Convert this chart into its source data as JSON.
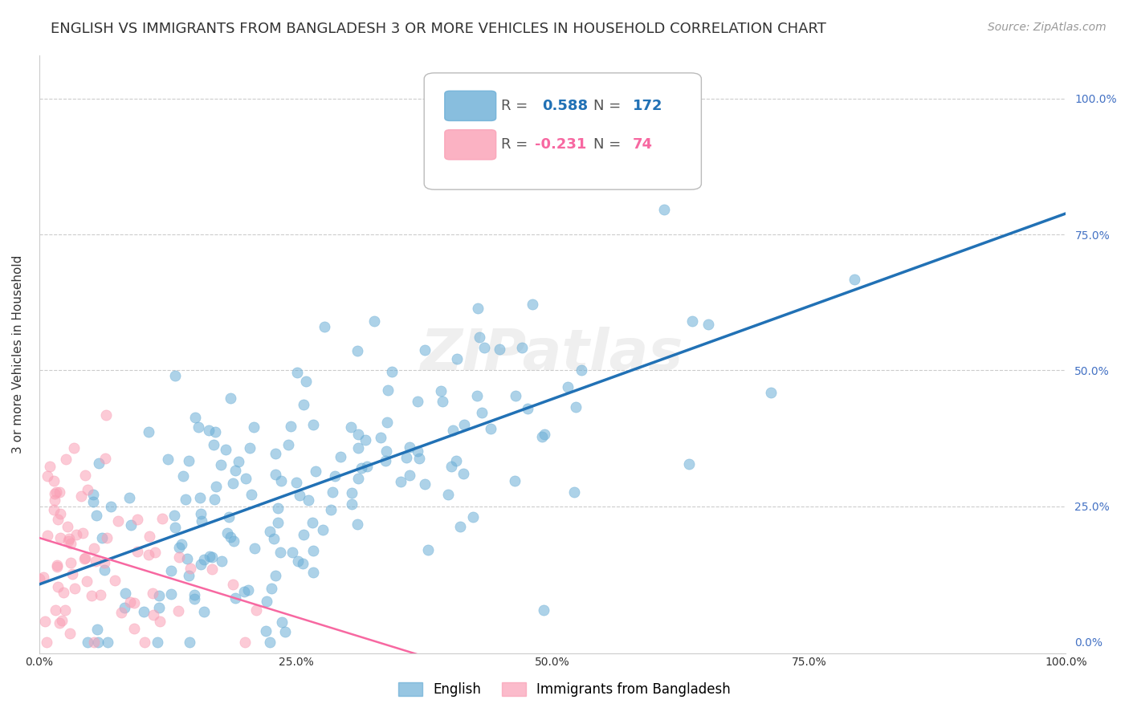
{
  "title": "ENGLISH VS IMMIGRANTS FROM BANGLADESH 3 OR MORE VEHICLES IN HOUSEHOLD CORRELATION CHART",
  "source": "Source: ZipAtlas.com",
  "ylabel": "3 or more Vehicles in Household",
  "xlabel_ticks": [
    "0.0%",
    "25.0%",
    "50.0%",
    "75.0%",
    "100.0%"
  ],
  "ylabel_ticks": [
    "0.0%",
    "25.0%",
    "50.0%",
    "75.0%",
    "100.0%"
  ],
  "english_R": 0.588,
  "english_N": 172,
  "bangladesh_R": -0.231,
  "bangladesh_N": 74,
  "english_color": "#6baed6",
  "bangladesh_color": "#fa9fb5",
  "english_line_color": "#2171b5",
  "bangladesh_line_color": "#f768a1",
  "watermark": "ZIPatlas",
  "legend_english_label": "English",
  "legend_bangladesh_label": "Immigrants from Bangladesh",
  "xlim": [
    0.0,
    1.0
  ],
  "ylim": [
    0.0,
    1.0
  ],
  "title_fontsize": 13,
  "axis_label_fontsize": 11,
  "tick_fontsize": 10,
  "legend_fontsize": 13,
  "source_fontsize": 10
}
